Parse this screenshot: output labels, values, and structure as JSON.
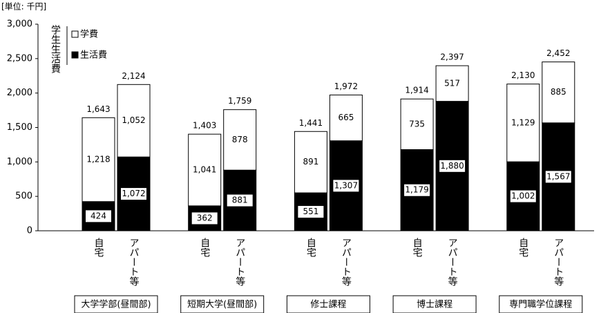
{
  "chart_data": {
    "type": "bar",
    "stacked": true,
    "unit_label": "[単位: 千円]",
    "legend_title": "学生生活費",
    "legend": "upper-left",
    "categories": [
      "自宅",
      "アパート等",
      "自宅",
      "アパート等",
      "自宅",
      "アパート等",
      "自宅",
      "アパート等",
      "自宅",
      "アパート等"
    ],
    "groups": [
      "大学学部(昼間部)",
      "短期大学(昼間部)",
      "修士課程",
      "博士課程",
      "専門職学位課程"
    ],
    "series": [
      {
        "name": "生活費",
        "color": "#000000",
        "values": [
          424,
          1072,
          362,
          881,
          551,
          1307,
          1179,
          1880,
          1002,
          1567
        ],
        "value_labels": [
          "424",
          "1,072",
          "362",
          "881",
          "551",
          "1,307",
          "1,179",
          "1,880",
          "1,002",
          "1,567"
        ]
      },
      {
        "name": "学費",
        "color": "#ffffff",
        "values": [
          1218,
          1052,
          1041,
          878,
          891,
          665,
          735,
          517,
          1129,
          885
        ],
        "value_labels": [
          "1,218",
          "1,052",
          "1,041",
          "878",
          "891",
          "665",
          "735",
          "517",
          "1,129",
          "885"
        ]
      }
    ],
    "totals": [
      1643,
      2124,
      1403,
      1759,
      1441,
      1972,
      1914,
      2397,
      2130,
      2452
    ],
    "total_labels": [
      "1,643",
      "2,124",
      "1,403",
      "1,759",
      "1,441",
      "1,972",
      "1,914",
      "2,397",
      "2,130",
      "2,452"
    ],
    "ylim": [
      0,
      3000
    ],
    "yticks": [
      0,
      500,
      {
        "value": 1000,
        "label": "1,000"
      },
      {
        "value": 1500,
        "label": "1,500"
      },
      {
        "value": 2000,
        "label": "2,000"
      },
      {
        "value": 2500,
        "label": "2,500"
      },
      {
        "value": 3000,
        "label": "3,000"
      }
    ]
  }
}
